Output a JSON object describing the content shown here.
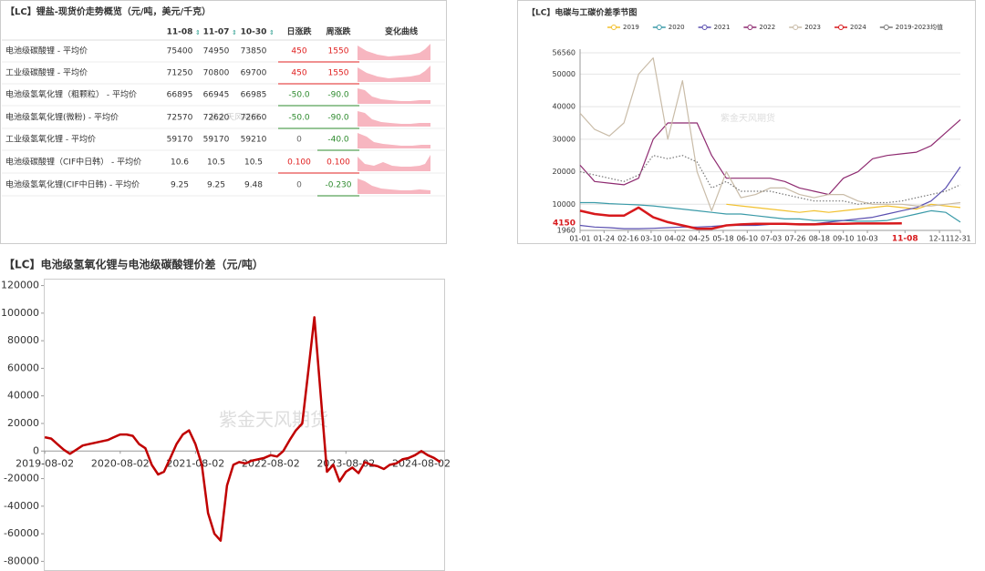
{
  "table": {
    "title": "【LC】锂盐-现货价走势概览（元/吨，美元/千克）",
    "watermark": "紫金天风期货",
    "columns": [
      "11-08",
      "11-07",
      "10-30",
      "日涨跌",
      "周涨跌",
      "变化曲线"
    ],
    "rows": [
      {
        "name": "电池级碳酸锂 - 平均价",
        "cells": [
          "75400",
          "74950",
          "73850",
          "450",
          "1550"
        ]
      },
      {
        "name": "工业级碳酸锂 - 平均价",
        "cells": [
          "71250",
          "70800",
          "69700",
          "450",
          "1550"
        ]
      },
      {
        "name": "电池级氢氧化锂（粗颗粒） - 平均价",
        "cells": [
          "66895",
          "66945",
          "66985",
          "-50.0",
          "-90.0"
        ]
      },
      {
        "name": "电池级氢氧化锂(微粉) - 平均价",
        "cells": [
          "72570",
          "72620",
          "72660",
          "-50.0",
          "-90.0"
        ]
      },
      {
        "name": "工业级氢氧化锂 - 平均价",
        "cells": [
          "59170",
          "59170",
          "59210",
          "0",
          "-40.0"
        ]
      },
      {
        "name": "电池级碳酸锂（CIF中日韩） - 平均价",
        "cells": [
          "10.6",
          "10.5",
          "10.5",
          "0.100",
          "0.100"
        ]
      },
      {
        "name": "电池级氢氧化锂(CIF中日韩) - 平均价",
        "cells": [
          "9.25",
          "9.25",
          "9.48",
          "0",
          "-0.230"
        ]
      }
    ]
  },
  "chart_data": [
    {
      "type": "line",
      "title": "【LC】电碳与工碳价差季节图",
      "watermark": "紫金天风期货",
      "grid": true,
      "x": [
        1,
        15,
        29,
        43,
        57,
        71,
        85,
        99,
        113,
        127,
        141,
        155,
        169,
        183,
        197,
        211,
        225,
        239,
        253,
        267,
        281,
        295,
        309,
        323,
        337,
        351,
        365
      ],
      "xlim": [
        1,
        365
      ],
      "xticks": [
        {
          "value": 1,
          "label": "01-01"
        },
        {
          "value": 24,
          "label": "01-24"
        },
        {
          "value": 47,
          "label": "02-16"
        },
        {
          "value": 69,
          "label": "03-10"
        },
        {
          "value": 92,
          "label": "04-02"
        },
        {
          "value": 115,
          "label": "04-25"
        },
        {
          "value": 138,
          "label": "05-18"
        },
        {
          "value": 161,
          "label": "06-10"
        },
        {
          "value": 184,
          "label": "07-03"
        },
        {
          "value": 207,
          "label": "07-26"
        },
        {
          "value": 230,
          "label": "08-18"
        },
        {
          "value": 253,
          "label": "09-10"
        },
        {
          "value": 276,
          "label": "10-03"
        },
        {
          "value": 312,
          "label": "11-08"
        },
        {
          "value": 345,
          "label": "12-11"
        },
        {
          "value": 365,
          "label": "12-31"
        }
      ],
      "ylim": [
        1960,
        56560
      ],
      "yticks": [
        1960,
        10000,
        20000,
        30000,
        40000,
        50000,
        56560
      ],
      "series": [
        {
          "name": "2019",
          "color": "#f2c12e",
          "values": [
            null,
            null,
            null,
            null,
            null,
            null,
            null,
            null,
            null,
            null,
            10000,
            9500,
            9000,
            8500,
            8000,
            7500,
            8000,
            7500,
            8000,
            8500,
            9000,
            9500,
            9000,
            8500,
            10000,
            9500,
            9000
          ]
        },
        {
          "name": "2020",
          "color": "#3a9aa8",
          "values": [
            10500,
            10500,
            10200,
            10000,
            9800,
            9500,
            9000,
            8500,
            8000,
            7500,
            7000,
            7000,
            6500,
            6000,
            5500,
            5500,
            5000,
            5000,
            5000,
            4800,
            4800,
            5000,
            6000,
            7000,
            8000,
            7500,
            4500
          ]
        },
        {
          "name": "2021",
          "color": "#5a4fb0",
          "values": [
            3500,
            3000,
            2800,
            2500,
            2500,
            2600,
            2800,
            3000,
            3000,
            3200,
            3500,
            3500,
            3500,
            3800,
            4000,
            4000,
            4000,
            4500,
            5000,
            5500,
            6000,
            7000,
            8000,
            9000,
            11000,
            15000,
            21500
          ]
        },
        {
          "name": "2022",
          "color": "#8e2a70",
          "values": [
            22000,
            17000,
            16500,
            16000,
            18000,
            30000,
            35000,
            35000,
            35000,
            25000,
            18000,
            18000,
            18000,
            18000,
            17000,
            15000,
            14000,
            13000,
            18000,
            20000,
            24000,
            25000,
            25500,
            26000,
            28000,
            32000,
            36000
          ]
        },
        {
          "name": "2023",
          "color": "#c9bca8",
          "values": [
            38000,
            33000,
            31000,
            35000,
            50000,
            55000,
            30000,
            48000,
            20000,
            8000,
            20000,
            12000,
            13000,
            15000,
            15000,
            13000,
            12000,
            13000,
            13000,
            11000,
            10000,
            10000,
            10000,
            9500,
            9500,
            10000,
            10500
          ]
        },
        {
          "name": "2024",
          "color": "#d7191c",
          "values": [
            8000,
            7000,
            6500,
            6500,
            9000,
            6000,
            4500,
            3500,
            2500,
            2500,
            3500,
            3800,
            4000,
            4000,
            4000,
            3800,
            3800,
            4000,
            4000,
            4100,
            4100,
            4100,
            4150,
            null,
            null,
            null,
            null
          ]
        },
        {
          "name": "2019-2023均值",
          "color": "#777777",
          "style": "dotted",
          "values": [
            20000,
            19000,
            18000,
            17000,
            19000,
            25000,
            24000,
            25000,
            23000,
            15000,
            17000,
            14000,
            14000,
            14000,
            13000,
            12000,
            11000,
            11000,
            11000,
            10000,
            10500,
            10500,
            11000,
            12000,
            13000,
            14000,
            16000
          ]
        }
      ]
    },
    {
      "type": "line",
      "title": "【LC】电池级氢氧化锂与电池级碳酸锂价差（元/吨）",
      "watermark": "紫金天风期货",
      "grid": false,
      "color": "#c00000",
      "x": [
        "2019-08-02",
        "2019-09-02",
        "2019-10-02",
        "2019-11-02",
        "2019-12-02",
        "2020-01-02",
        "2020-02-02",
        "2020-03-02",
        "2020-04-02",
        "2020-05-02",
        "2020-06-02",
        "2020-07-02",
        "2020-08-02",
        "2020-09-02",
        "2020-10-02",
        "2020-11-02",
        "2020-12-02",
        "2021-01-02",
        "2021-02-02",
        "2021-03-02",
        "2021-04-02",
        "2021-05-02",
        "2021-06-02",
        "2021-07-02",
        "2021-08-02",
        "2021-09-02",
        "2021-10-02",
        "2021-11-02",
        "2021-12-02",
        "2022-01-02",
        "2022-02-02",
        "2022-03-02",
        "2022-04-02",
        "2022-05-02",
        "2022-06-02",
        "2022-07-02",
        "2022-08-02",
        "2022-09-02",
        "2022-10-02",
        "2022-11-02",
        "2022-12-02",
        "2023-01-02",
        "2023-02-02",
        "2023-03-02",
        "2023-04-02",
        "2023-05-02",
        "2023-06-02",
        "2023-07-02",
        "2023-08-02",
        "2023-09-02",
        "2023-10-02",
        "2023-11-02",
        "2023-12-02",
        "2024-01-02",
        "2024-02-02",
        "2024-03-02",
        "2024-04-02",
        "2024-05-02",
        "2024-06-02",
        "2024-07-02",
        "2024-08-02",
        "2024-09-02",
        "2024-10-02",
        "2024-11-02"
      ],
      "values": [
        10000,
        9000,
        5000,
        1000,
        -2000,
        1000,
        4000,
        5000,
        6000,
        7000,
        8000,
        10000,
        12000,
        12000,
        11000,
        5000,
        2000,
        -10000,
        -17000,
        -15000,
        -5000,
        5000,
        12000,
        15000,
        5000,
        -10000,
        -45000,
        -60000,
        -65000,
        -25000,
        -10000,
        -8000,
        -9000,
        -7000,
        -6000,
        -5000,
        -3000,
        -4000,
        0,
        8000,
        15000,
        20000,
        60000,
        97000,
        40000,
        -15000,
        -10000,
        -22000,
        -15000,
        -12000,
        -16000,
        -8000,
        -10000,
        -11000,
        -13000,
        -10000,
        -9000,
        -6000,
        -5000,
        -3000,
        0,
        -3000,
        -5000,
        -8000
      ],
      "xlim": [
        "2019-07-28",
        "2024-11-25"
      ],
      "xticks": [
        "2019-08-02",
        "2020-08-02",
        "2021-08-02",
        "2022-08-02",
        "2023-08-02",
        "2024-08-02"
      ],
      "ylim": [
        -87000,
        125000
      ],
      "yticks": [
        -80000,
        -60000,
        -40000,
        -20000,
        0,
        20000,
        40000,
        60000,
        80000,
        100000,
        120000
      ]
    }
  ]
}
